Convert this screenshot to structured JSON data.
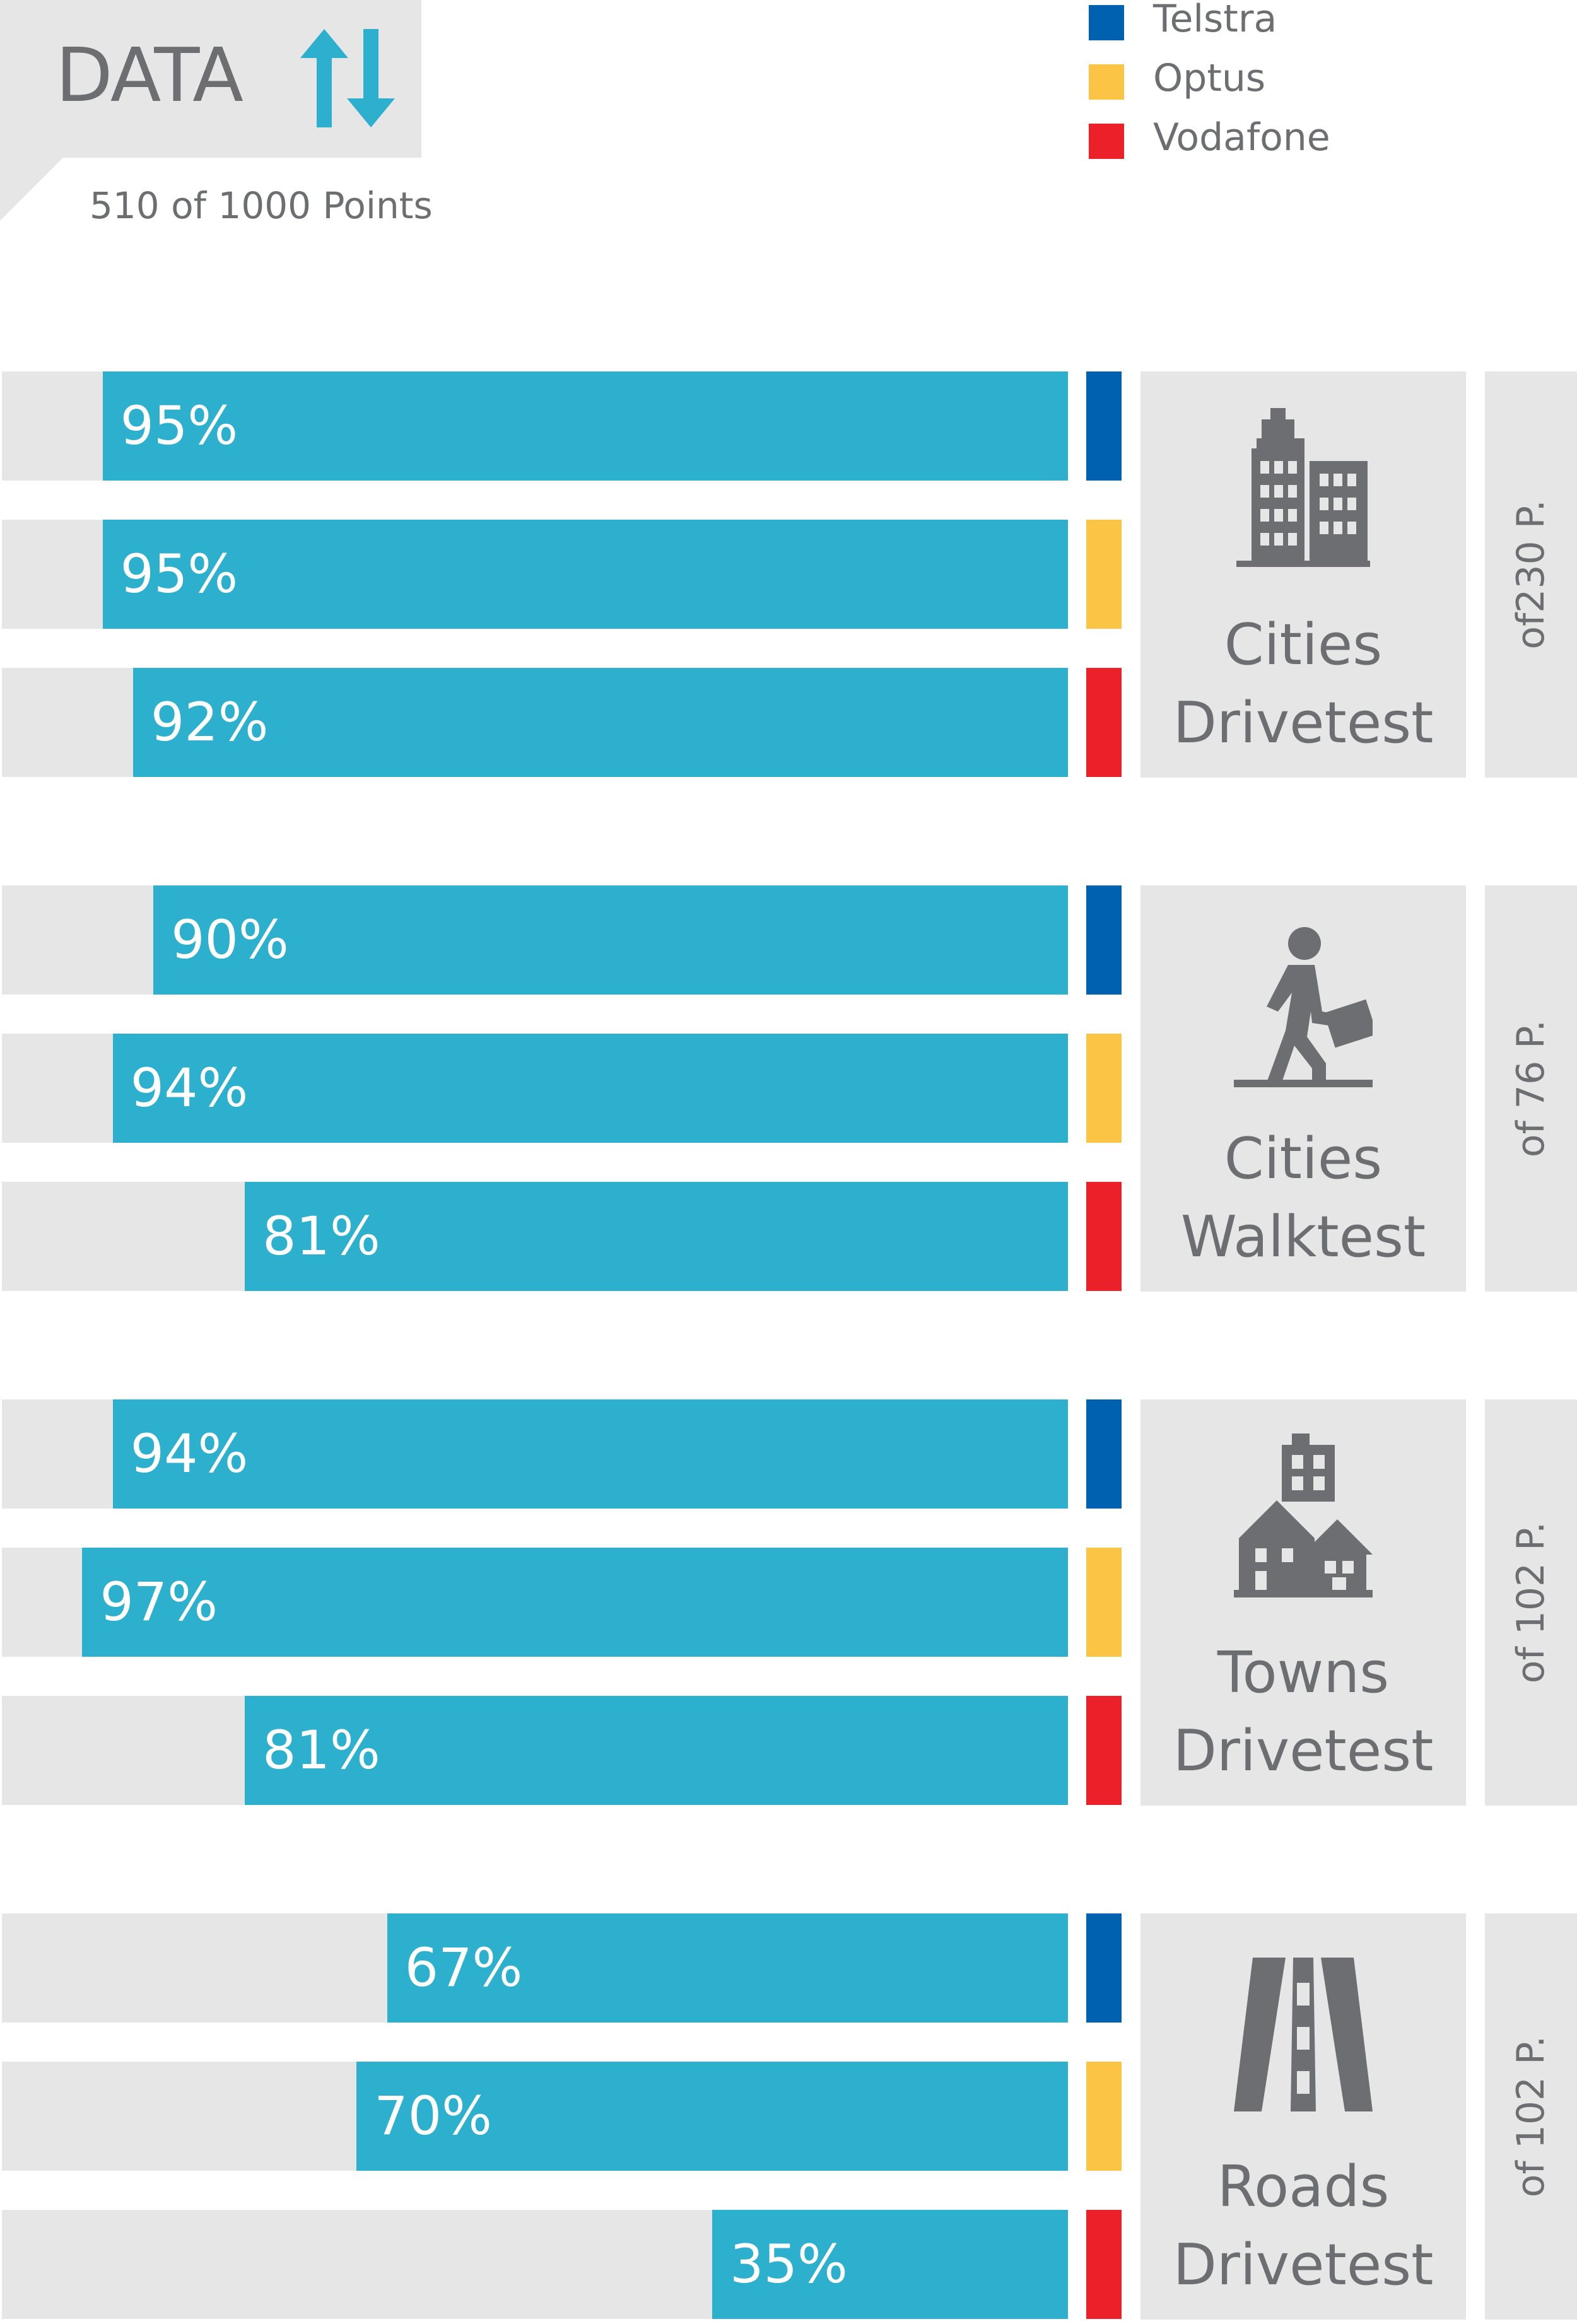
{
  "header": {
    "title": "DATA",
    "icon": "up-down-arrows-icon",
    "points": "510 of 1000 Points"
  },
  "colors": {
    "bar": "#2db0cd",
    "track": "#e6e6e6",
    "icon_accent": "#2db0cd",
    "text": "#6d6e71",
    "telstra": "#0061b0",
    "optus": "#fbc444",
    "vodafone": "#ec2029"
  },
  "legend": [
    {
      "label": "Telstra",
      "color": "#0061b0"
    },
    {
      "label": "Optus",
      "color": "#fbc444"
    },
    {
      "label": "Vodafone",
      "color": "#ec2029"
    }
  ],
  "chart_data": {
    "type": "bar",
    "orientation": "horizontal",
    "title": "DATA",
    "subtitle": "510 of 1000 Points",
    "unit": "%",
    "xlim": [
      0,
      100
    ],
    "series_names": [
      "Telstra",
      "Optus",
      "Vodafone"
    ],
    "groups": [
      {
        "category": [
          "Cities",
          "Drivetest"
        ],
        "icon": "city-buildings-icon",
        "points": "of230 P.",
        "values": [
          95,
          95,
          92
        ],
        "labels": [
          "95%",
          "95%",
          "92%"
        ]
      },
      {
        "category": [
          "Cities",
          "Walktest"
        ],
        "icon": "walking-person-icon",
        "points": "of 76 P.",
        "values": [
          90,
          94,
          81
        ],
        "labels": [
          "90%",
          "94%",
          "81%"
        ]
      },
      {
        "category": [
          "Towns",
          "Drivetest"
        ],
        "icon": "town-houses-icon",
        "points": "of 102 P.",
        "values": [
          94,
          97,
          81
        ],
        "labels": [
          "94%",
          "97%",
          "81%"
        ]
      },
      {
        "category": [
          "Roads",
          "Drivetest"
        ],
        "icon": "road-icon",
        "points": "of 102 P.",
        "values": [
          67,
          70,
          35
        ],
        "labels": [
          "67%",
          "70%",
          "35%"
        ]
      }
    ]
  }
}
